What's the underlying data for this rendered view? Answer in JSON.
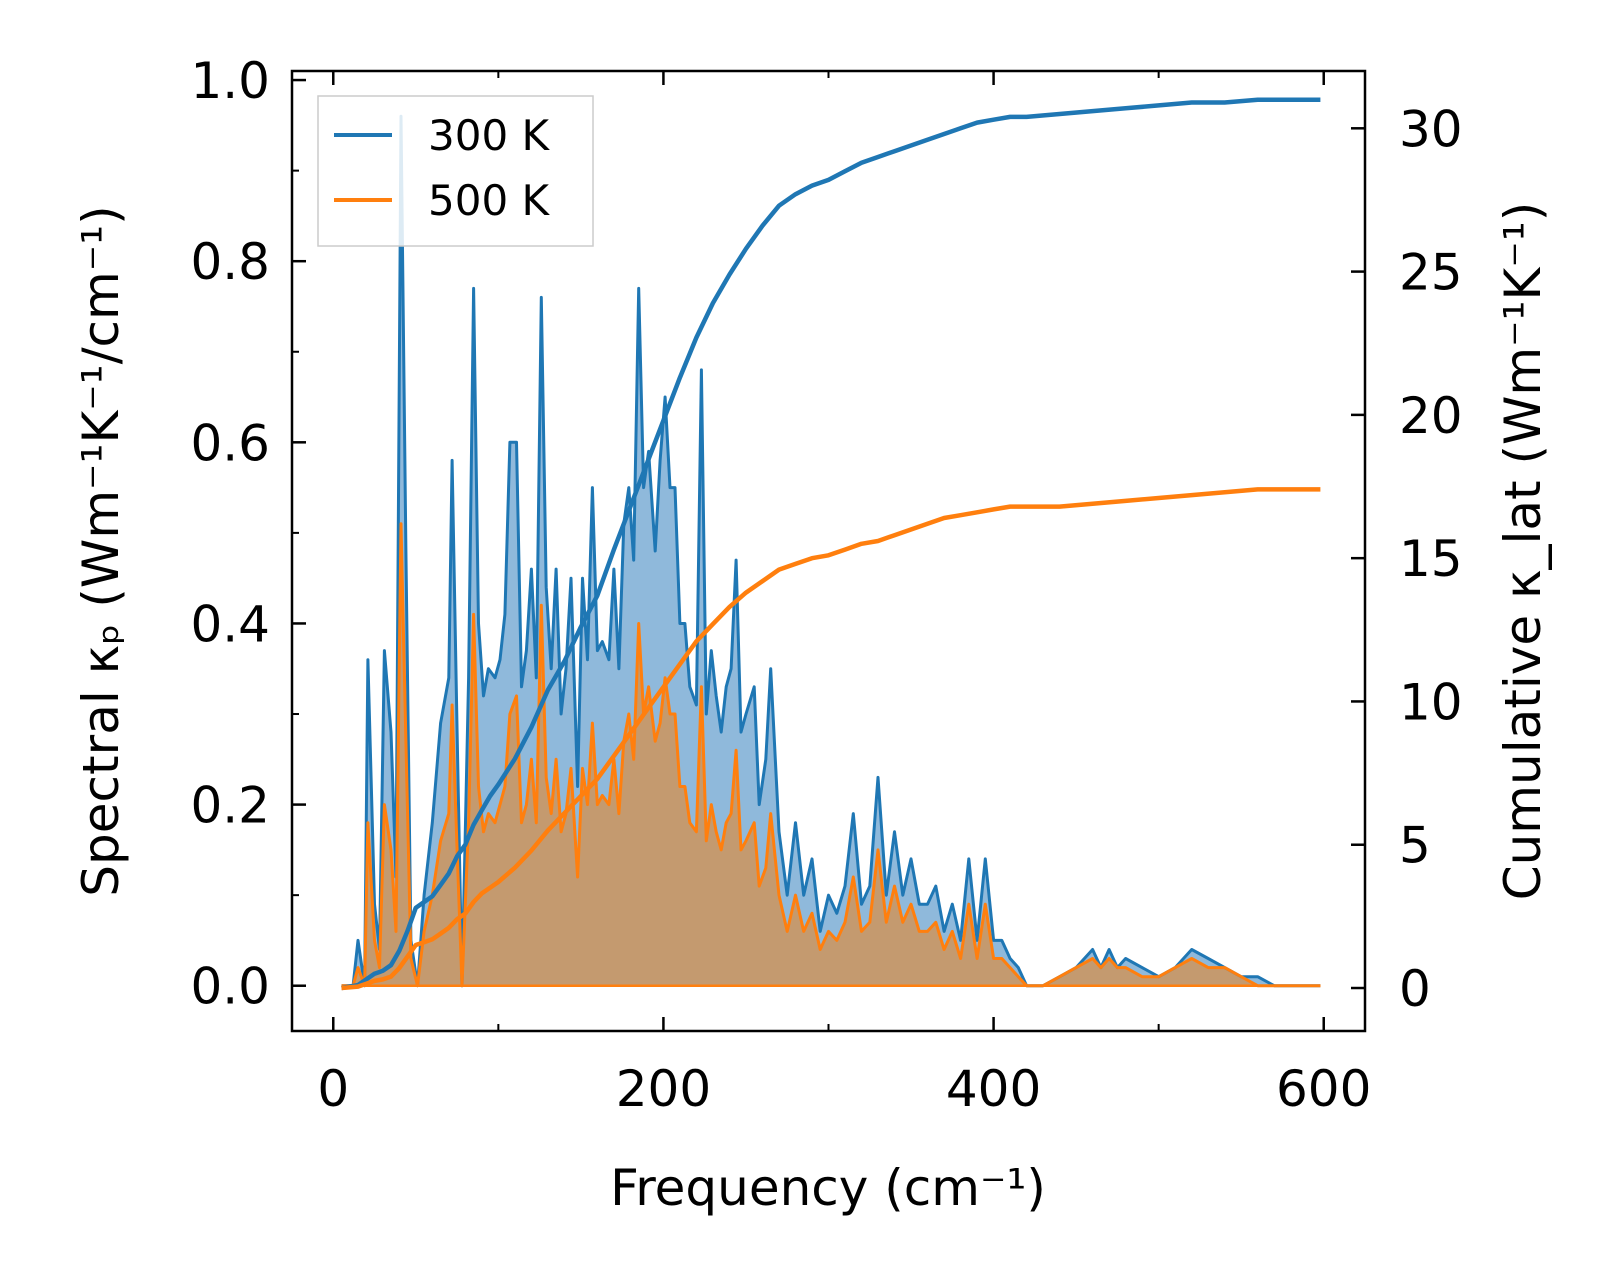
{
  "chart_data": {
    "type": "area",
    "xlabel": "Frequency (cm⁻¹)",
    "ylabel_left": "Spectral κₚ (Wm⁻¹K⁻¹/cm⁻¹)",
    "ylabel_right": "Cumulative κ_lat (Wm⁻¹K⁻¹)",
    "xlim": [
      -25,
      625
    ],
    "ylim_left": [
      -0.05,
      1.01
    ],
    "ylim_right": [
      -1.5,
      32.0
    ],
    "x_ticks": [
      "0",
      "200",
      "400",
      "600"
    ],
    "y_left_ticks": [
      "0.0",
      "0.2",
      "0.4",
      "0.6",
      "0.8",
      "1.0"
    ],
    "y_right_ticks": [
      "0",
      "5",
      "10",
      "15",
      "20",
      "25",
      "30"
    ],
    "legend": {
      "position": "top-left",
      "entries": [
        "300 K",
        "500 K"
      ]
    },
    "colors": {
      "series_300K": "#1f77b4",
      "series_500K": "#ff7f0e",
      "fill_300K": "#8fb9db",
      "fill_500K": "#c49a6f"
    },
    "spectral": [
      {
        "name": "300 K",
        "axis": "left",
        "x": [
          5,
          12,
          15,
          19,
          21,
          25,
          28,
          31,
          35,
          38,
          41,
          44,
          47,
          51,
          55,
          60,
          65,
          70,
          72,
          75,
          78,
          82,
          85,
          88,
          91,
          94,
          98,
          101,
          104,
          107,
          111,
          114,
          117,
          120,
          123,
          126,
          129,
          132,
          135,
          138,
          141,
          144,
          148,
          151,
          154,
          157,
          160,
          163,
          167,
          170,
          173,
          176,
          179,
          182,
          185,
          188,
          191,
          195,
          198,
          201,
          204,
          207,
          210,
          213,
          216,
          220,
          223,
          226,
          229,
          232,
          235,
          238,
          241,
          244,
          247,
          250,
          255,
          258,
          262,
          265,
          270,
          275,
          280,
          285,
          290,
          295,
          300,
          305,
          310,
          315,
          320,
          325,
          330,
          335,
          340,
          345,
          350,
          355,
          360,
          365,
          370,
          375,
          380,
          385,
          390,
          395,
          400,
          405,
          410,
          415,
          420,
          425,
          430,
          440,
          450,
          460,
          465,
          470,
          475,
          480,
          490,
          500,
          510,
          520,
          530,
          540,
          550,
          560,
          570,
          580,
          590,
          598
        ],
        "y": [
          0.0,
          0.0,
          0.05,
          0.0,
          0.36,
          0.09,
          0.04,
          0.37,
          0.28,
          0.12,
          0.96,
          0.48,
          0.05,
          0.0,
          0.1,
          0.18,
          0.29,
          0.34,
          0.58,
          0.28,
          0.0,
          0.34,
          0.77,
          0.4,
          0.32,
          0.35,
          0.34,
          0.36,
          0.41,
          0.6,
          0.6,
          0.33,
          0.37,
          0.46,
          0.34,
          0.76,
          0.44,
          0.35,
          0.46,
          0.3,
          0.35,
          0.45,
          0.22,
          0.45,
          0.36,
          0.55,
          0.37,
          0.38,
          0.36,
          0.46,
          0.35,
          0.51,
          0.55,
          0.47,
          0.77,
          0.55,
          0.59,
          0.48,
          0.58,
          0.65,
          0.55,
          0.55,
          0.4,
          0.4,
          0.33,
          0.31,
          0.68,
          0.3,
          0.37,
          0.32,
          0.28,
          0.33,
          0.35,
          0.47,
          0.28,
          0.3,
          0.33,
          0.2,
          0.25,
          0.35,
          0.17,
          0.1,
          0.18,
          0.1,
          0.14,
          0.06,
          0.1,
          0.08,
          0.11,
          0.19,
          0.09,
          0.11,
          0.23,
          0.1,
          0.17,
          0.1,
          0.14,
          0.09,
          0.09,
          0.11,
          0.06,
          0.09,
          0.05,
          0.14,
          0.05,
          0.14,
          0.05,
          0.05,
          0.03,
          0.02,
          0.0,
          0.0,
          0.0,
          0.01,
          0.02,
          0.04,
          0.02,
          0.04,
          0.02,
          0.03,
          0.02,
          0.01,
          0.02,
          0.04,
          0.03,
          0.02,
          0.01,
          0.01,
          0.0,
          0.0,
          0.0,
          0.0
        ]
      },
      {
        "name": "500 K",
        "axis": "left",
        "x": [
          5,
          12,
          15,
          19,
          21,
          25,
          28,
          31,
          35,
          38,
          41,
          44,
          47,
          51,
          55,
          60,
          65,
          70,
          72,
          75,
          78,
          82,
          85,
          88,
          91,
          94,
          98,
          101,
          104,
          107,
          111,
          114,
          117,
          120,
          123,
          126,
          129,
          132,
          135,
          138,
          141,
          144,
          148,
          151,
          154,
          157,
          160,
          163,
          167,
          170,
          173,
          176,
          179,
          182,
          185,
          188,
          191,
          195,
          198,
          201,
          204,
          207,
          210,
          213,
          216,
          220,
          223,
          226,
          229,
          232,
          235,
          238,
          241,
          244,
          247,
          250,
          255,
          258,
          262,
          265,
          270,
          275,
          280,
          285,
          290,
          295,
          300,
          305,
          310,
          315,
          320,
          325,
          330,
          335,
          340,
          345,
          350,
          355,
          360,
          365,
          370,
          375,
          380,
          385,
          390,
          395,
          400,
          405,
          410,
          415,
          420,
          425,
          430,
          440,
          450,
          460,
          465,
          470,
          475,
          480,
          490,
          500,
          510,
          520,
          530,
          540,
          550,
          560,
          570,
          580,
          590,
          598
        ],
        "y": [
          0.0,
          0.0,
          0.02,
          0.0,
          0.18,
          0.05,
          0.02,
          0.2,
          0.15,
          0.06,
          0.51,
          0.27,
          0.03,
          0.0,
          0.06,
          0.1,
          0.16,
          0.19,
          0.31,
          0.15,
          0.0,
          0.18,
          0.41,
          0.22,
          0.17,
          0.19,
          0.18,
          0.2,
          0.22,
          0.3,
          0.32,
          0.18,
          0.2,
          0.25,
          0.18,
          0.42,
          0.23,
          0.19,
          0.25,
          0.17,
          0.19,
          0.24,
          0.12,
          0.24,
          0.2,
          0.29,
          0.2,
          0.21,
          0.2,
          0.25,
          0.19,
          0.27,
          0.3,
          0.25,
          0.4,
          0.3,
          0.33,
          0.27,
          0.29,
          0.34,
          0.3,
          0.3,
          0.22,
          0.22,
          0.18,
          0.17,
          0.33,
          0.16,
          0.2,
          0.17,
          0.15,
          0.18,
          0.19,
          0.26,
          0.15,
          0.16,
          0.18,
          0.11,
          0.13,
          0.19,
          0.1,
          0.06,
          0.1,
          0.06,
          0.08,
          0.04,
          0.06,
          0.05,
          0.07,
          0.12,
          0.06,
          0.07,
          0.15,
          0.07,
          0.11,
          0.07,
          0.09,
          0.06,
          0.06,
          0.07,
          0.04,
          0.06,
          0.03,
          0.09,
          0.03,
          0.09,
          0.03,
          0.03,
          0.02,
          0.01,
          0.0,
          0.0,
          0.0,
          0.01,
          0.02,
          0.03,
          0.02,
          0.03,
          0.02,
          0.02,
          0.01,
          0.01,
          0.02,
          0.03,
          0.02,
          0.02,
          0.01,
          0.0,
          0.0,
          0.0,
          0.0,
          0.0
        ]
      }
    ],
    "cumulative": [
      {
        "name": "300 K",
        "axis": "right",
        "x": [
          5,
          15,
          20,
          25,
          30,
          35,
          40,
          45,
          50,
          55,
          60,
          65,
          70,
          75,
          80,
          85,
          90,
          95,
          100,
          110,
          120,
          130,
          140,
          150,
          160,
          170,
          180,
          190,
          200,
          210,
          220,
          230,
          240,
          250,
          260,
          270,
          280,
          290,
          300,
          310,
          320,
          330,
          340,
          350,
          360,
          370,
          380,
          390,
          400,
          410,
          420,
          440,
          460,
          480,
          500,
          520,
          540,
          560,
          580,
          598
        ],
        "y": [
          0,
          0.1,
          0.3,
          0.5,
          0.6,
          0.8,
          1.3,
          2.0,
          2.8,
          3.0,
          3.2,
          3.6,
          4.0,
          4.6,
          5.0,
          5.7,
          6.2,
          6.7,
          7.1,
          8.0,
          9.1,
          10.4,
          11.4,
          12.6,
          13.7,
          15.3,
          16.8,
          18.3,
          19.8,
          21.3,
          22.7,
          23.9,
          24.9,
          25.8,
          26.6,
          27.3,
          27.7,
          28.0,
          28.2,
          28.5,
          28.8,
          29.0,
          29.2,
          29.4,
          29.6,
          29.8,
          30.0,
          30.2,
          30.3,
          30.4,
          30.4,
          30.5,
          30.6,
          30.7,
          30.8,
          30.9,
          30.9,
          31.0,
          31.0,
          31.0
        ]
      },
      {
        "name": "500 K",
        "axis": "right",
        "x": [
          5,
          15,
          20,
          25,
          30,
          35,
          40,
          45,
          50,
          55,
          60,
          65,
          70,
          75,
          80,
          85,
          90,
          95,
          100,
          110,
          120,
          130,
          140,
          150,
          160,
          170,
          180,
          190,
          200,
          210,
          220,
          230,
          240,
          250,
          260,
          270,
          280,
          290,
          300,
          310,
          320,
          330,
          340,
          350,
          360,
          370,
          380,
          390,
          400,
          410,
          420,
          440,
          460,
          480,
          500,
          520,
          540,
          560,
          580,
          598
        ],
        "y": [
          0,
          0.05,
          0.15,
          0.25,
          0.3,
          0.4,
          0.7,
          1.1,
          1.5,
          1.6,
          1.7,
          1.9,
          2.1,
          2.4,
          2.6,
          3.0,
          3.3,
          3.5,
          3.7,
          4.2,
          4.8,
          5.5,
          6.1,
          6.7,
          7.3,
          8.1,
          8.9,
          9.7,
          10.5,
          11.3,
          12.1,
          12.7,
          13.3,
          13.8,
          14.2,
          14.6,
          14.8,
          15.0,
          15.1,
          15.3,
          15.5,
          15.6,
          15.8,
          16.0,
          16.2,
          16.4,
          16.5,
          16.6,
          16.7,
          16.8,
          16.8,
          16.8,
          16.9,
          17.0,
          17.1,
          17.2,
          17.3,
          17.4,
          17.4,
          17.4
        ]
      }
    ]
  }
}
